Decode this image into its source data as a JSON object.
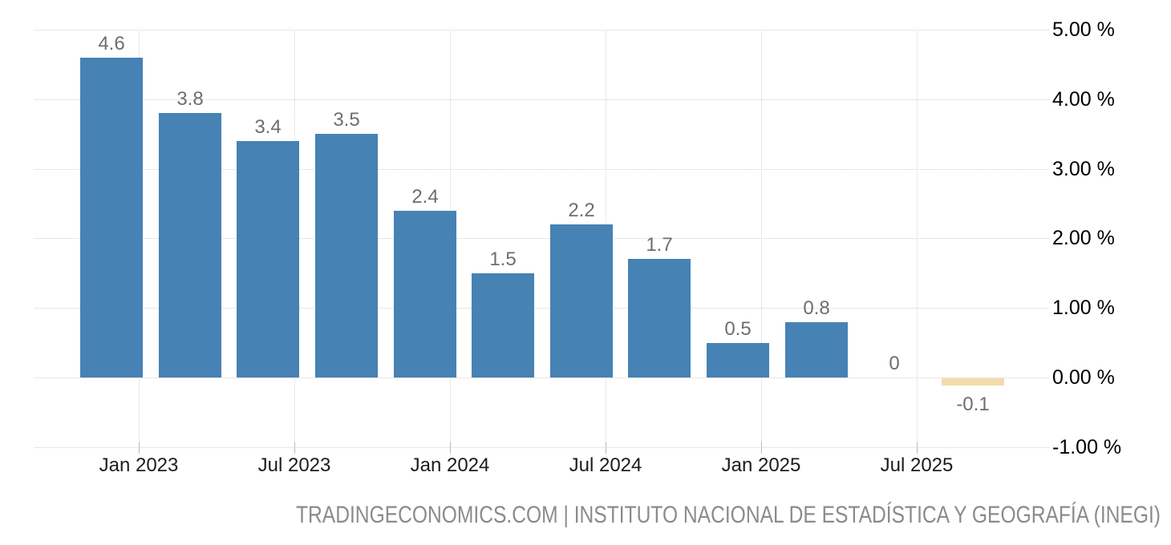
{
  "chart_data": {
    "type": "bar",
    "title": "",
    "unit": "%",
    "bars": [
      {
        "label": "4.6",
        "value": 4.6,
        "kind": "actual"
      },
      {
        "label": "3.8",
        "value": 3.8,
        "kind": "actual"
      },
      {
        "label": "3.4",
        "value": 3.4,
        "kind": "actual"
      },
      {
        "label": "3.5",
        "value": 3.5,
        "kind": "actual"
      },
      {
        "label": "2.4",
        "value": 2.4,
        "kind": "actual"
      },
      {
        "label": "1.5",
        "value": 1.5,
        "kind": "actual"
      },
      {
        "label": "2.2",
        "value": 2.2,
        "kind": "actual"
      },
      {
        "label": "1.7",
        "value": 1.7,
        "kind": "actual"
      },
      {
        "label": "0.5",
        "value": 0.5,
        "kind": "actual"
      },
      {
        "label": "0.8",
        "value": 0.8,
        "kind": "actual"
      },
      {
        "label": "0",
        "value": 0,
        "kind": "actual"
      },
      {
        "label": "-0.1",
        "value": -0.1,
        "kind": "forecast"
      }
    ],
    "x_tick_labels": [
      "Jan 2023",
      "Jul 2023",
      "Jan 2024",
      "Jul 2024",
      "Jan 2025",
      "Jul 2025"
    ],
    "y_tick_labels": [
      "5.00 %",
      "4.00 %",
      "3.00 %",
      "2.00 %",
      "1.00 %",
      "0.00 %",
      "-1.00 %"
    ],
    "y_tick_values": [
      5,
      4,
      3,
      2,
      1,
      0,
      -1
    ],
    "ylim": [
      -1,
      5
    ],
    "grid": "dotted",
    "legend": "none",
    "colors": {
      "bar": "#4682b4",
      "forecast_bar": "#f3dcab",
      "grid": "#cfcfcf",
      "value_label": "#6e6e6e",
      "x_axis_label": "#1c1c1c",
      "y_axis_label": "#000000",
      "footer_text": "#8b8b8b"
    }
  },
  "footer": {
    "text": "TRADINGECONOMICS.COM | INSTITUTO NACIONAL DE ESTADÍSTICA Y GEOGRAFÍA (INEGI)"
  }
}
